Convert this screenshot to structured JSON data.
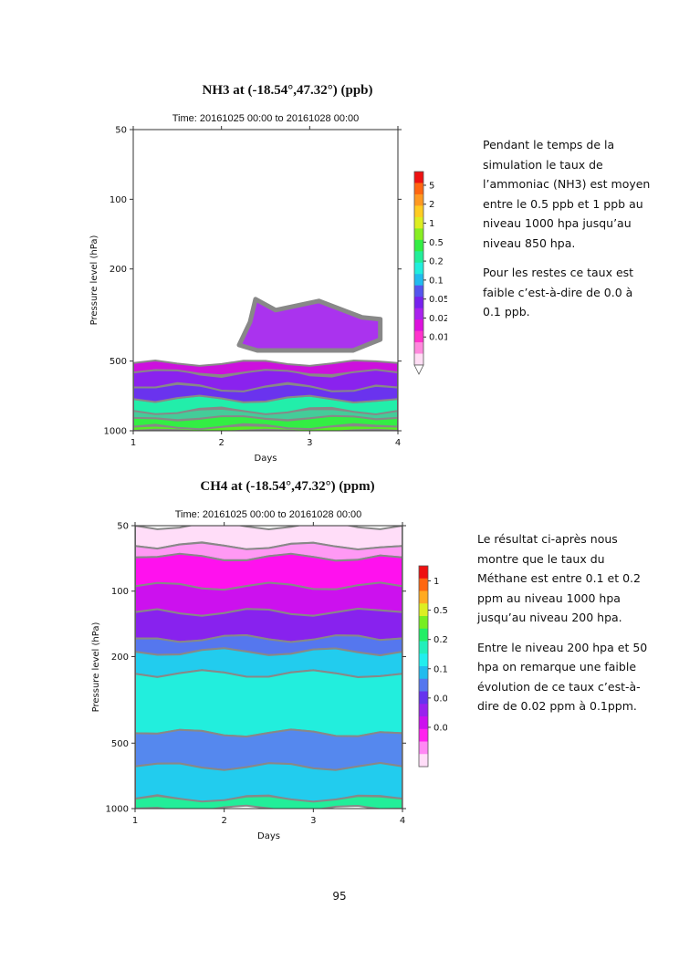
{
  "chart_data": [
    {
      "type": "heatmap",
      "title": "NH3 at (-18.54°,47.32°) (ppb)",
      "subtitle": "Time: 20161025 00:00 to 20161028 00:00",
      "xlabel": "Days",
      "ylabel": "Pressure level (hPa)",
      "x_ticks": [
        "1",
        "2",
        "3",
        "4"
      ],
      "y_ticks": [
        "50",
        "100",
        "200",
        "500",
        "1000"
      ],
      "xlim": [
        1,
        4
      ],
      "ylim": [
        1000,
        50
      ],
      "colorbar": {
        "tick_labels": [
          "5",
          "2",
          "1",
          "0.5",
          "0.2",
          "0.1",
          "0.05",
          "0.02",
          "0.01"
        ],
        "colors": [
          "#ee1111",
          "#ff6611",
          "#ff9922",
          "#ffcc22",
          "#ddee22",
          "#88ee22",
          "#33ee44",
          "#22ee99",
          "#22eedd",
          "#22bbee",
          "#5555ee",
          "#7722ee",
          "#aa22ee",
          "#dd11dd",
          "#ff33cc",
          "#ff88dd",
          "#ffddf4"
        ]
      },
      "bands": [
        {
          "p_top": 1000,
          "p_bottom": 960,
          "color": "#55ee22"
        },
        {
          "p_top": 960,
          "p_bottom": 880,
          "color": "#33ee44"
        },
        {
          "p_top": 880,
          "p_bottom": 820,
          "color": "#44cc99"
        },
        {
          "p_top": 820,
          "p_bottom": 730,
          "color": "#22eeaa"
        },
        {
          "p_top": 730,
          "p_bottom": 650,
          "color": "#6a33ee"
        },
        {
          "p_top": 650,
          "p_bottom": 560,
          "color": "#8a22ee"
        },
        {
          "p_top": 560,
          "p_bottom": 510,
          "color": "#cc11dd"
        }
      ],
      "elevated_layer": {
        "x_start": 2.2,
        "x_end": 3.8,
        "p_top": 270,
        "p_bottom": 450,
        "color": "#aa33ee"
      }
    },
    {
      "type": "heatmap",
      "title": "CH4 at (-18.54°,47.32°) (ppm)",
      "subtitle": "Time: 20161025 00:00 to 20161028 00:00",
      "xlabel": "Days",
      "ylabel": "Pressure level (hPa)",
      "x_ticks": [
        "1",
        "2",
        "3",
        "4"
      ],
      "y_ticks": [
        "50",
        "100",
        "200",
        "500",
        "1000"
      ],
      "xlim": [
        1,
        4
      ],
      "ylim": [
        1000,
        50
      ],
      "colorbar": {
        "tick_labels": [
          "1",
          "0.5",
          "0.2",
          "0.1",
          "0.05",
          "0.02"
        ],
        "colors": [
          "#ee1111",
          "#ff6611",
          "#ffaa22",
          "#ddee22",
          "#77ee22",
          "#22ee66",
          "#22eebb",
          "#22eeee",
          "#22bbee",
          "#5577ee",
          "#6633ee",
          "#9922ee",
          "#cc11ee",
          "#ff22ee",
          "#ff88f4",
          "#ffddf8"
        ]
      },
      "bands": [
        {
          "p_top": 50,
          "p_bottom": 62,
          "color": "#ffddf8"
        },
        {
          "p_top": 62,
          "p_bottom": 70,
          "color": "#ff99f4"
        },
        {
          "p_top": 70,
          "p_bottom": 95,
          "color": "#ff11ee"
        },
        {
          "p_top": 95,
          "p_bottom": 125,
          "color": "#cc11ee"
        },
        {
          "p_top": 125,
          "p_bottom": 165,
          "color": "#8822ee"
        },
        {
          "p_top": 165,
          "p_bottom": 190,
          "color": "#5577ee"
        },
        {
          "p_top": 190,
          "p_bottom": 240,
          "color": "#22ccee"
        },
        {
          "p_top": 240,
          "p_bottom": 450,
          "color": "#22eedd"
        },
        {
          "p_top": 450,
          "p_bottom": 640,
          "color": "#5588ee"
        },
        {
          "p_top": 640,
          "p_bottom": 900,
          "color": "#22ccee"
        },
        {
          "p_top": 900,
          "p_bottom": 1000,
          "color": "#22ee99"
        }
      ]
    }
  ],
  "text": {
    "nh3_paragraphs": [
      "Pendant le temps de la simulation le taux de l’ammoniac (NH3) est moyen entre le 0.5 ppb et 1 ppb au niveau 1000 hpa jusqu’au niveau 850 hpa.",
      "Pour les restes ce taux est faible c’est-à-dire de 0.0 à 0.1 ppb."
    ],
    "ch4_paragraphs": [
      "Le résultat ci-après nous montre que le taux du Méthane est entre 0.1 et 0.2 ppm au niveau 1000 hpa jusqu’au niveau 200 hpa.",
      "Entre le niveau 200 hpa et 50 hpa on remarque une faible évolution de ce taux c’est-à-dire de 0.02 ppm à 0.1ppm."
    ],
    "page_number": "95"
  }
}
